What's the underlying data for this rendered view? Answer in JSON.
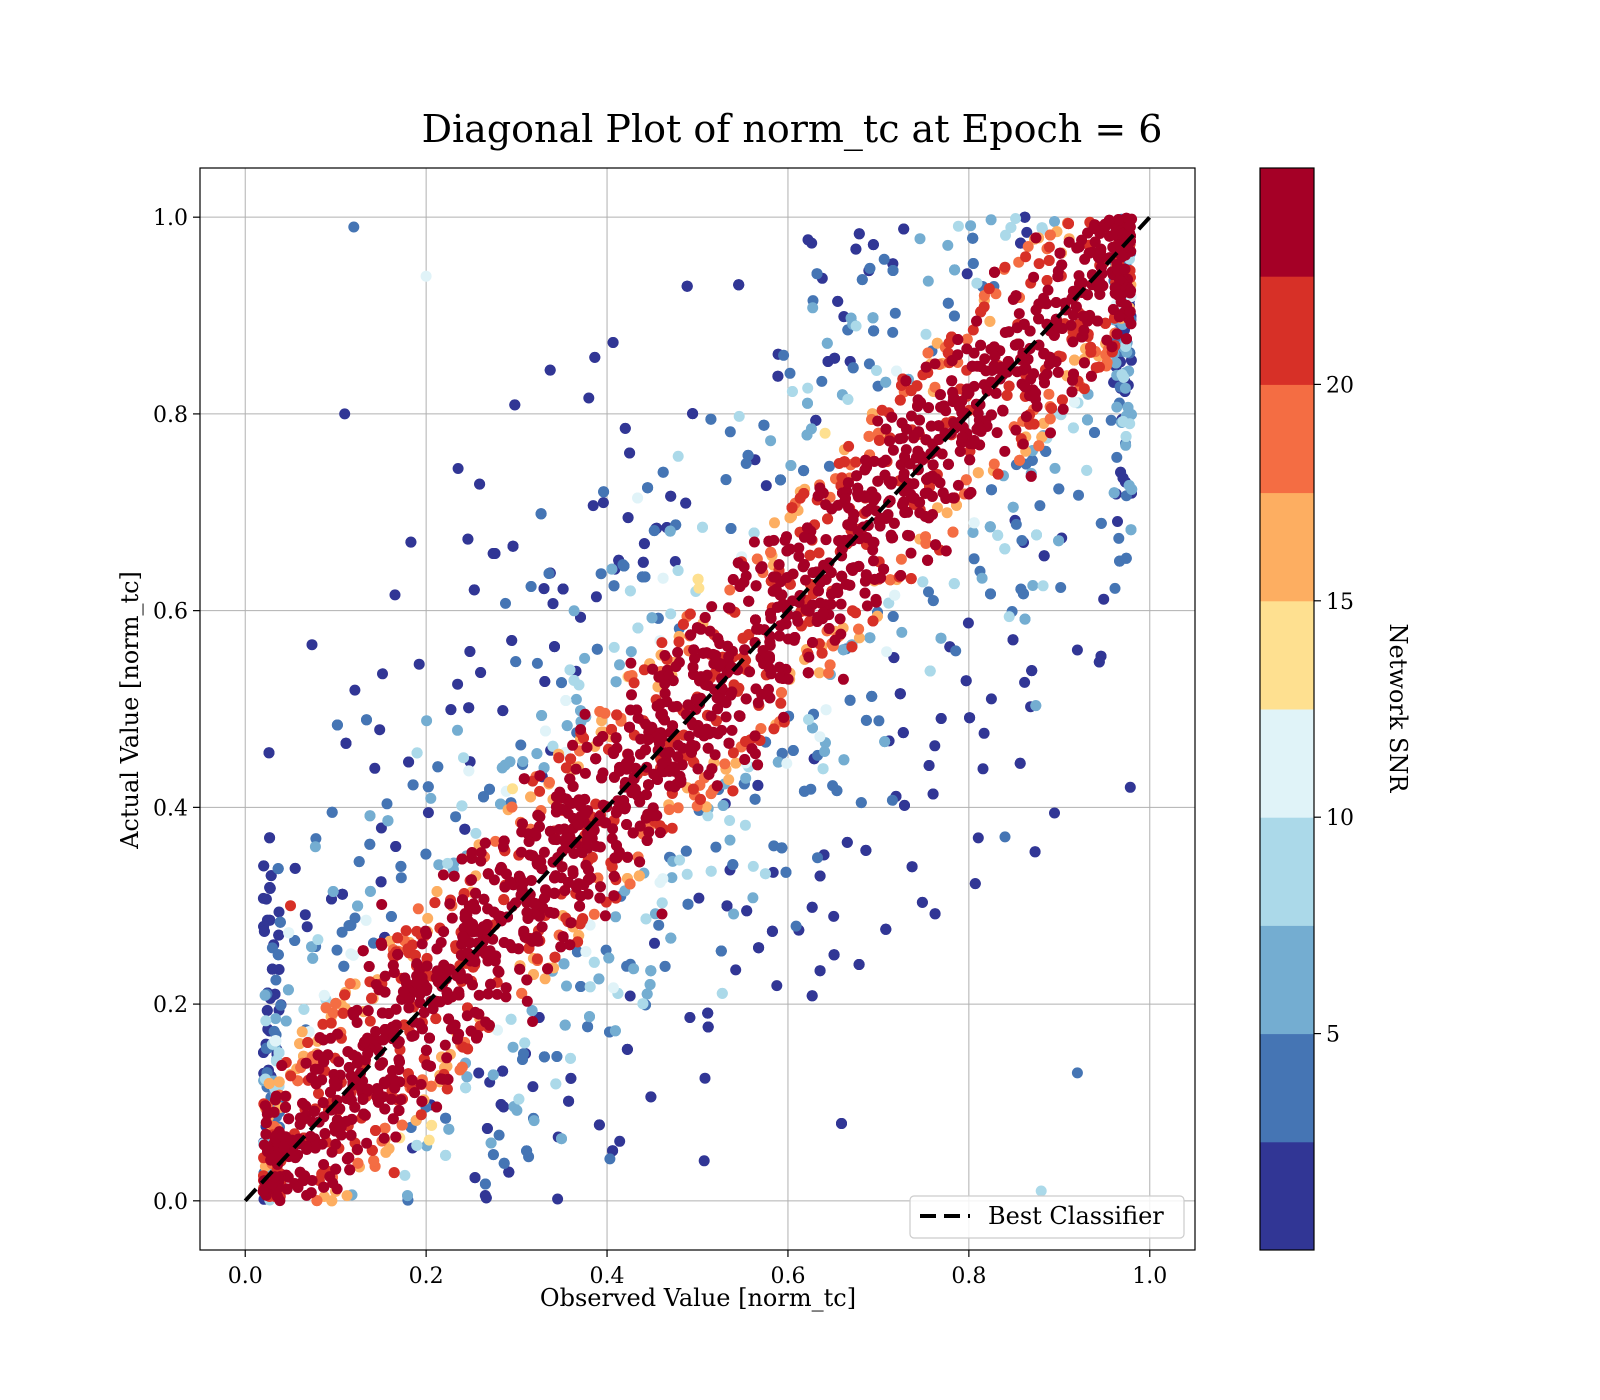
{
  "chart_data": {
    "type": "scatter",
    "title": "Diagonal Plot of norm_tc at Epoch = 6",
    "xlabel": "Observed Value [norm_tc]",
    "ylabel": "Actual Value [norm_tc]",
    "xlim": [
      -0.05,
      1.05
    ],
    "ylim": [
      -0.05,
      1.05
    ],
    "xticks": [
      "0.0",
      "0.2",
      "0.4",
      "0.6",
      "0.8",
      "1.0"
    ],
    "yticks": [
      "0.0",
      "0.2",
      "0.4",
      "0.6",
      "0.8",
      "1.0"
    ],
    "grid": true,
    "reference_line": {
      "label": "Best Classifier",
      "x": [
        0,
        1
      ],
      "y": [
        0,
        1
      ],
      "style": "dashed",
      "color": "#000000"
    },
    "legend": {
      "position": "lower-right",
      "entries": [
        "Best Classifier"
      ]
    },
    "colorbar": {
      "label": "Network SNR",
      "range": [
        0,
        25
      ],
      "ticks": [
        "5",
        "10",
        "15",
        "20"
      ],
      "colors": [
        "#313695",
        "#4575b4",
        "#74add1",
        "#abd9e9",
        "#e0f3f8",
        "#fee090",
        "#fdae61",
        "#f46d43",
        "#d73027",
        "#a50026"
      ]
    },
    "points_description_color_encoding": "Network SNR",
    "sample_points": [
      {
        "x": 0.12,
        "y": 0.99,
        "snr": 4
      },
      {
        "x": 0.92,
        "y": 0.56,
        "snr": 2
      },
      {
        "x": 0.92,
        "y": 0.13,
        "snr": 3
      },
      {
        "x": 0.88,
        "y": 0.01,
        "snr": 8
      },
      {
        "x": 0.11,
        "y": 0.8,
        "snr": 2
      },
      {
        "x": 0.05,
        "y": 0.3,
        "snr": 20
      },
      {
        "x": 0.2,
        "y": 0.94,
        "snr": 12
      },
      {
        "x": 0.84,
        "y": 0.37,
        "snr": 4
      }
    ]
  }
}
